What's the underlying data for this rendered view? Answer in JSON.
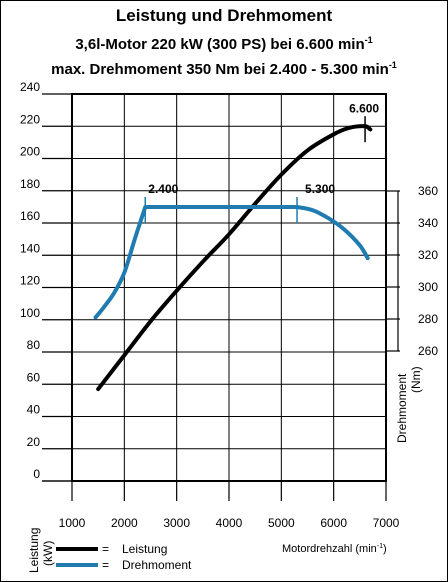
{
  "titles": {
    "line1": "Leistung und Drehmoment",
    "line2_main": "3,6l-Motor 220 kW (300 PS) bei 6.600 min",
    "line2_sup": "-1",
    "line3_main": "max. Drehmoment 350 Nm bei 2.400 - 5.300 min",
    "line3_sup": "-1"
  },
  "axis_labels": {
    "y_left": [
      "Leistung",
      "(kW)"
    ],
    "y_right": [
      "Drehmoment",
      "(Nm)"
    ],
    "x_main": "Motordrehzahl (min",
    "x_sup": "-1",
    "x_close": ")"
  },
  "legend": [
    {
      "symbol": "=",
      "label": "Leistung"
    },
    {
      "symbol": "=",
      "label": "Drehmoment"
    }
  ],
  "annotations": [
    "6.600",
    "2.400",
    "5.300"
  ],
  "colors": {
    "power": "#000000",
    "torque": "#1f7bb0",
    "grid": "#000000"
  },
  "chart_data": {
    "type": "line",
    "title": "Leistung und Drehmoment",
    "xlabel": "Motordrehzahl (min-1)",
    "ylabel_left": "Leistung (kW)",
    "ylabel_right": "Drehmoment (Nm)",
    "xlim": [
      1000,
      7000
    ],
    "ylim_left": [
      0,
      240
    ],
    "ylim_right": [
      260,
      360
    ],
    "x_ticks": [
      1000,
      2000,
      3000,
      4000,
      5000,
      6000,
      7000
    ],
    "y_left_ticks": [
      0,
      20,
      40,
      60,
      80,
      100,
      120,
      140,
      160,
      180,
      200,
      220,
      240
    ],
    "y_right_ticks": [
      260,
      280,
      300,
      320,
      340,
      360
    ],
    "grid": true,
    "series": [
      {
        "name": "Leistung",
        "axis": "left",
        "x": [
          1500,
          2000,
          2500,
          3000,
          3500,
          4000,
          4500,
          5000,
          5500,
          6000,
          6300,
          6600,
          6700
        ],
        "y": [
          57,
          78,
          99,
          118,
          136,
          153,
          172,
          190,
          205,
          215,
          219,
          220,
          218
        ]
      },
      {
        "name": "Drehmoment",
        "axis": "right",
        "x": [
          1450,
          1600,
          1800,
          2000,
          2200,
          2400,
          3000,
          4000,
          5000,
          5300,
          5600,
          5900,
          6200,
          6500,
          6650
        ],
        "y": [
          281,
          287,
          296,
          309,
          330,
          350,
          350,
          350,
          350,
          350,
          348,
          343,
          336,
          326,
          318
        ]
      }
    ],
    "markers": [
      {
        "x": 6600,
        "axis": "left",
        "label": "6.600"
      },
      {
        "x": 2400,
        "axis": "right",
        "label": "2.400"
      },
      {
        "x": 5300,
        "axis": "right",
        "label": "5.300"
      }
    ]
  }
}
